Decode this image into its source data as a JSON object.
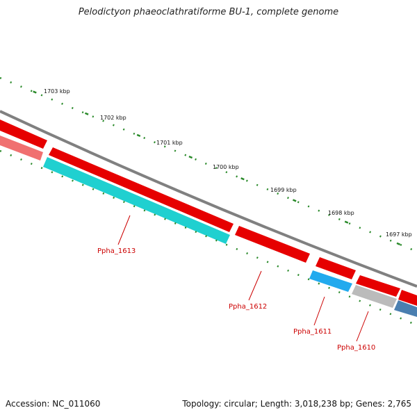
{
  "title": "Pelodictyon phaeoclathratiforme BU-1, complete genome",
  "footer": {
    "accession": "Accession: NC_011060",
    "summary": "Topology: circular; Length: 3,018,238 bp; Genes: 2,765"
  },
  "ticks": [
    {
      "label": "1703 kbp"
    },
    {
      "label": "1702 kbp"
    },
    {
      "label": "1701 kbp"
    },
    {
      "label": "1700 kbp"
    },
    {
      "label": "1699 kbp"
    },
    {
      "label": "1698 kbp"
    },
    {
      "label": "1697 kbp"
    }
  ],
  "genes": [
    {
      "label": "Ppha_1613"
    },
    {
      "label": "Ppha_1612"
    },
    {
      "label": "Ppha_1611"
    },
    {
      "label": "Ppha_1610"
    }
  ],
  "colors": {
    "cds": "#e60000",
    "cds_light": "#f07070",
    "cog_cyan": "#1fd0d0",
    "cog_blue": "#22aaee",
    "cog_gray": "#bbbbbb",
    "cog_steel": "#4a7fb0",
    "backbone": "#808080",
    "tick": "#2a8a2a"
  }
}
